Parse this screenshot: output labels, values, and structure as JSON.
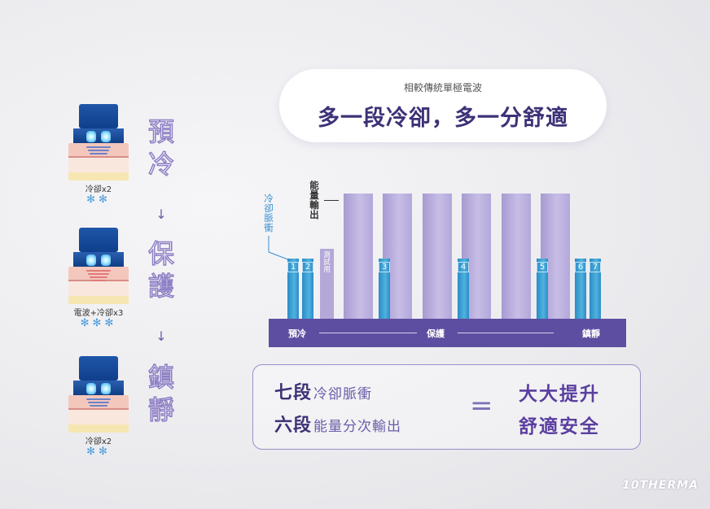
{
  "left_steps": [
    {
      "label": "冷卻x2",
      "snowflakes": "✻✻",
      "wave_color": "#6c82c8"
    },
    {
      "label": "電波+冷卻x3",
      "snowflakes": "✻✻✻",
      "wave_color": "#e07a7a"
    },
    {
      "label": "冷卻x2",
      "snowflakes": "✻✻",
      "wave_color": "#6c82c8"
    }
  ],
  "phases": [
    "預冷",
    "保護",
    "鎮靜"
  ],
  "arrow_glyph": "↓",
  "header": {
    "subtitle": "相較傳統單極電波",
    "title": "多一段冷卻，多一分舒適"
  },
  "chart_labels": {
    "cooling_pulse": "冷卻脈衝",
    "energy_output": "能量輸出",
    "test": "測試用"
  },
  "chart_data": {
    "type": "bar",
    "cooling_pulses": [
      "1",
      "2",
      "3",
      "4",
      "5",
      "6",
      "7"
    ],
    "energy_output_bars": 6,
    "test_bar": "測試用",
    "phases": [
      "預冷",
      "保護",
      "鎮靜"
    ],
    "colors": {
      "cooling": "#2b8cc8",
      "energy": "#b9aedf",
      "baseline": "#5e4ea1"
    }
  },
  "summary": {
    "line1_bold": "七段",
    "line1_rest": "冷卻脈衝",
    "line2_bold": "六段",
    "line2_rest": "能量分次輸出",
    "equals": "=",
    "result1": "大大提升",
    "result2": "舒適安全"
  },
  "brand": "10THERMA"
}
